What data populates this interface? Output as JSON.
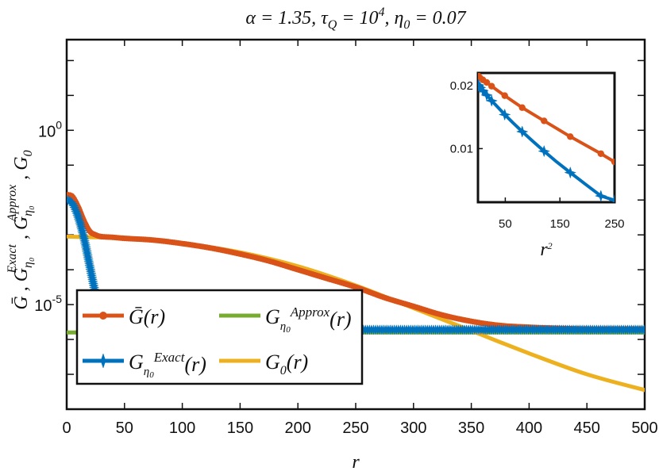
{
  "chart_data": {
    "type": "line",
    "title": "α = 1.35, τ_Q = 10^4, η_0 = 0.07",
    "xlabel": "r",
    "ylabel": "Ḡ , G_η0^Exact , G_η0^Approx , G_0",
    "yscale": "log",
    "xlim": [
      0,
      500
    ],
    "ylim_exp": [
      -8,
      2.6
    ],
    "xticks": [
      "0",
      "50",
      "100",
      "150",
      "200",
      "250",
      "300",
      "350",
      "400",
      "450",
      "500"
    ],
    "yticks": [
      {
        "label": "10",
        "exp": "0",
        "value_exp": 0
      },
      {
        "label": "10",
        "exp": "-5",
        "value_exp": -5
      }
    ],
    "legend": {
      "position": "lower-left",
      "entries": [
        {
          "key": "gbar",
          "label": "Ḡ(r)"
        },
        {
          "key": "gapprox",
          "label": "G_η0^Approx(r)"
        },
        {
          "key": "gexact",
          "label": "G_η0^Exact(r)"
        },
        {
          "key": "g0",
          "label": "G_0(r)"
        }
      ]
    },
    "series": [
      {
        "key": "gbar",
        "name": "Ḡ(r)",
        "color": "#D95319",
        "marker": "circle",
        "x": [
          1,
          5,
          10,
          15,
          20,
          25,
          30,
          40,
          50,
          75,
          100,
          125,
          150,
          175,
          200,
          225,
          250,
          275,
          300,
          325,
          350,
          375,
          400,
          425,
          450,
          475,
          500
        ],
        "y_log10": [
          -1.85,
          -1.9,
          -2.2,
          -2.6,
          -2.9,
          -3.0,
          -3.05,
          -3.07,
          -3.1,
          -3.15,
          -3.25,
          -3.38,
          -3.55,
          -3.75,
          -4.0,
          -4.25,
          -4.5,
          -4.8,
          -5.05,
          -5.3,
          -5.48,
          -5.6,
          -5.65,
          -5.68,
          -5.7,
          -5.7,
          -5.7
        ]
      },
      {
        "key": "gexact",
        "name": "G_η0^Exact(r)",
        "color": "#0072BD",
        "marker": "star",
        "x": [
          1,
          5,
          10,
          15,
          20,
          25,
          30,
          35,
          40,
          45,
          50,
          100,
          150,
          200,
          250,
          300,
          350,
          400,
          450,
          500
        ],
        "y_log10": [
          -2.0,
          -2.1,
          -2.5,
          -3.1,
          -3.9,
          -4.7,
          -5.35,
          -5.68,
          -5.72,
          -5.72,
          -5.72,
          -5.72,
          -5.72,
          -5.72,
          -5.72,
          -5.72,
          -5.72,
          -5.72,
          -5.72,
          -5.72
        ]
      },
      {
        "key": "gapprox",
        "name": "G_η0^Approx(r)",
        "color": "#77AC30",
        "marker": "none",
        "x": [
          1,
          500
        ],
        "y_log10": [
          -5.8,
          -5.8
        ]
      },
      {
        "key": "g0",
        "name": "G_0(r)",
        "color": "#EDB120",
        "marker": "none",
        "x": [
          1,
          50,
          100,
          150,
          200,
          250,
          300,
          350,
          400,
          450,
          500
        ],
        "y_log10": [
          -3.05,
          -3.1,
          -3.25,
          -3.5,
          -3.9,
          -4.45,
          -5.1,
          -5.75,
          -6.4,
          -7.0,
          -7.45
        ]
      }
    ],
    "inset": {
      "position": "top-right",
      "xlabel": "r^2",
      "xlim": [
        0,
        250
      ],
      "ylim": [
        0.0015,
        0.022
      ],
      "xticks": [
        "50",
        "150",
        "250"
      ],
      "yticks": [
        {
          "label": "0.02",
          "value": 0.02
        },
        {
          "label": "0.01",
          "value": 0.01
        }
      ],
      "series": [
        {
          "key": "gbar",
          "color": "#D95319",
          "marker": "circle",
          "x": [
            1,
            4,
            9,
            16,
            25,
            36,
            49,
            64,
            81,
            100,
            121,
            144,
            169,
            196,
            225,
            250
          ],
          "y": [
            0.0215,
            0.0212,
            0.0209,
            0.0205,
            0.0199,
            0.0192,
            0.0184,
            0.0175,
            0.0165,
            0.0155,
            0.0144,
            0.0132,
            0.0119,
            0.0106,
            0.0092,
            0.0079
          ]
        },
        {
          "key": "gexact",
          "color": "#0072BD",
          "marker": "star",
          "x": [
            1,
            4,
            9,
            16,
            25,
            36,
            49,
            64,
            81,
            100,
            121,
            144,
            169,
            196,
            225,
            250
          ],
          "y": [
            0.0201,
            0.0197,
            0.0192,
            0.0185,
            0.0176,
            0.0166,
            0.0154,
            0.0141,
            0.0127,
            0.0112,
            0.0096,
            0.0079,
            0.0062,
            0.0044,
            0.0025,
            0.0018
          ]
        }
      ]
    }
  }
}
